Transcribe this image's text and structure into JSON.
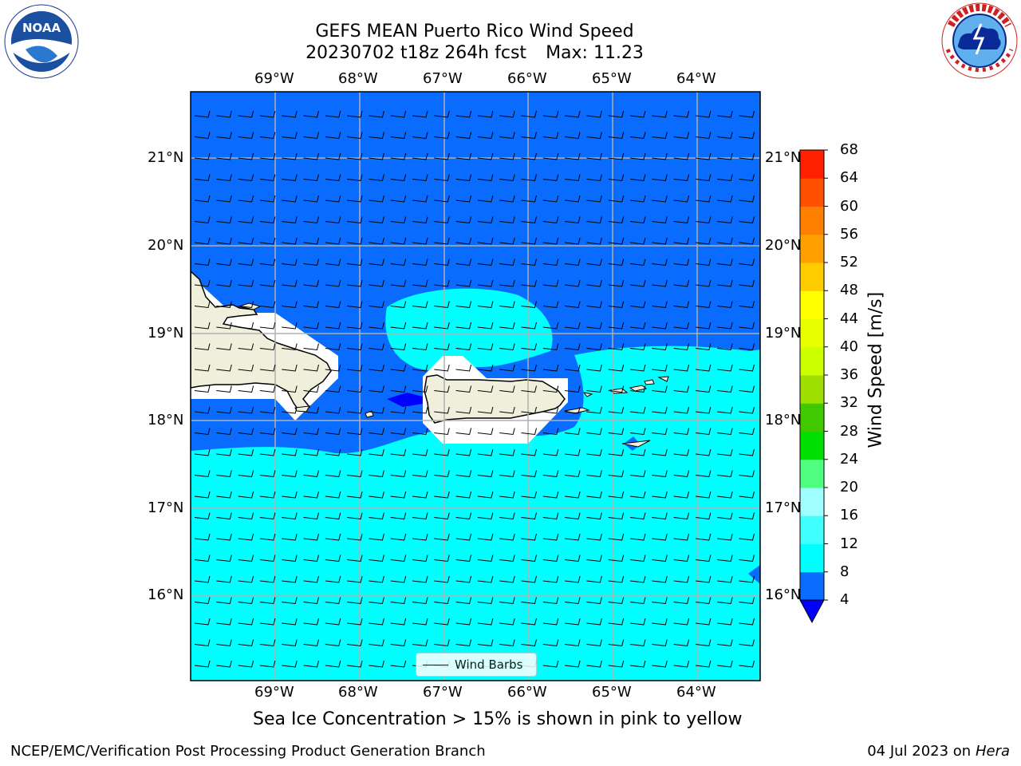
{
  "title_line1": "GEFS MEAN Puerto Rico Wind Speed",
  "title_line2_run": "20230702 t18z 264h fcst",
  "title_line2_max": "Max: 11.23",
  "subtitle": "Sea Ice Concentration > 15% is shown in pink to yellow",
  "footer_left": "NCEP/EMC/Verification Post Processing Product Generation Branch",
  "footer_right_date": "04 Jul 2023 on ",
  "footer_right_host": "Hera",
  "legend_label": "Wind Barbs",
  "logos": {
    "left": "noaa-logo",
    "right": "nws-logo"
  },
  "colorbar": {
    "label": "Wind Speed [m/s]",
    "ticks": [
      "4",
      "8",
      "12",
      "16",
      "20",
      "24",
      "28",
      "32",
      "36",
      "40",
      "44",
      "48",
      "52",
      "56",
      "60",
      "64",
      "68"
    ],
    "colors": [
      "#0a6cff",
      "#00ffff",
      "#40ffff",
      "#a0ffff",
      "#50ff80",
      "#00e000",
      "#40c800",
      "#a0e000",
      "#ccff00",
      "#e8ff00",
      "#ffff00",
      "#ffcc00",
      "#ffa000",
      "#ff8000",
      "#ff5000",
      "#ff2000",
      "#ff0000"
    ],
    "under_color": "#0000ff",
    "extend": "min"
  },
  "chart_data": {
    "type": "heatmap",
    "title": "GEFS MEAN Puerto Rico Wind Speed",
    "subtitle": "20230702 t18z 264h fcst   Max: 11.23",
    "variable": "Wind Speed [m/s]",
    "max_value": 11.23,
    "x_ticks": [
      "69°W",
      "68°W",
      "67°W",
      "66°W",
      "65°W",
      "64°W"
    ],
    "y_ticks": [
      "21°N",
      "20°N",
      "19°N",
      "18°N",
      "17°N",
      "16°N"
    ],
    "lon_range": [
      -70,
      -63.25
    ],
    "lat_range": [
      15.0,
      21.75
    ],
    "levels": [
      4,
      8,
      12,
      16,
      20,
      24,
      28,
      32,
      36,
      40,
      44,
      48,
      52,
      56,
      60,
      64,
      68
    ],
    "dominant_bins": [
      "4-8",
      "8-12"
    ],
    "wind_barbs": "mostly light easterly flow",
    "land_masses": [
      "Hispaniola (east)",
      "Puerto Rico",
      "Virgin Islands"
    ],
    "grid": true
  }
}
